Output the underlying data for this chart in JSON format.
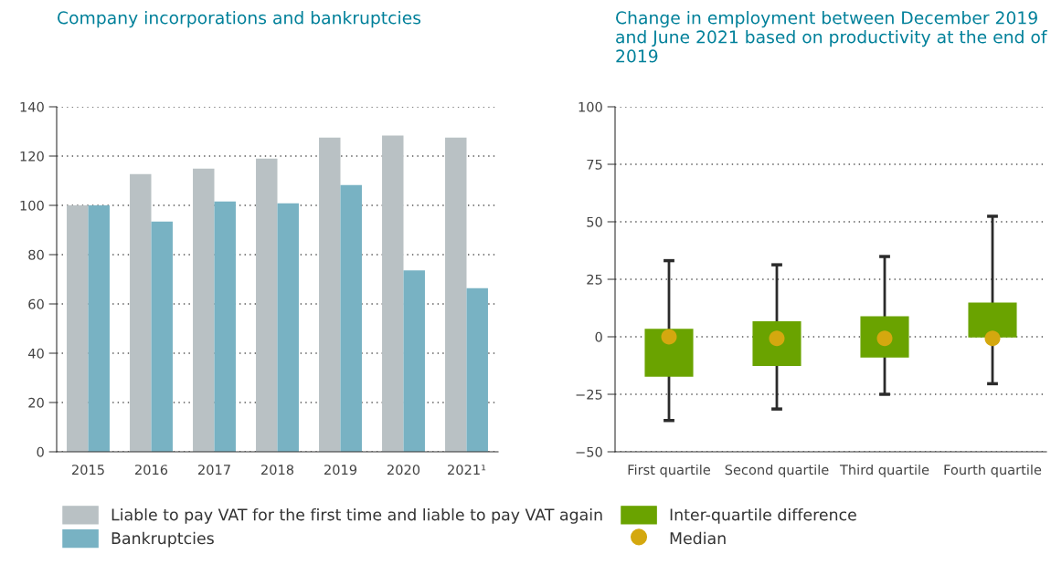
{
  "chart_data": [
    {
      "type": "bar",
      "title": "Company incorporations and bankruptcies",
      "categories": [
        "2015",
        "2016",
        "2017",
        "2018",
        "2019",
        "2020",
        "2021¹"
      ],
      "series": [
        {
          "name": "Liable to pay VAT for the first time and liable to pay VAT again",
          "color": "#b9c1c4",
          "values": [
            100,
            112.7,
            114.9,
            119.0,
            127.5,
            128.3,
            127.5
          ]
        },
        {
          "name": "Bankruptcies",
          "color": "#78b2c3",
          "values": [
            100,
            93.4,
            101.6,
            100.8,
            108.2,
            73.6,
            66.4
          ]
        }
      ],
      "ylim": [
        0,
        140
      ],
      "yticks": [
        0,
        20,
        40,
        60,
        80,
        100,
        120,
        140
      ],
      "grid": "y",
      "legend": "bottom"
    },
    {
      "type": "box",
      "title": "Change in employment between December 2019 and June 2021 based on productivity at the end of 2019",
      "categories": [
        "First quartile",
        "Second quartile",
        "Third quartile",
        "Fourth quartile"
      ],
      "series": [
        {
          "name": "Inter-quartile difference",
          "type": "box",
          "color": "#6aa300",
          "boxes": [
            {
              "low": -36.4,
              "q1": -17.4,
              "q3": 3.5,
              "high": 33.1
            },
            {
              "low": -31.4,
              "q1": -12.7,
              "q3": 6.7,
              "high": 31.3
            },
            {
              "low": -25.0,
              "q1": -9.0,
              "q3": 8.9,
              "high": 34.9
            },
            {
              "low": -20.4,
              "q1": -0.3,
              "q3": 14.9,
              "high": 52.4
            }
          ]
        },
        {
          "name": "Median",
          "type": "scatter",
          "color": "#d4a80f",
          "x": [
            "First quartile",
            "Second quartile",
            "Third quartile",
            "Fourth quartile"
          ],
          "values": [
            0,
            -0.7,
            -0.7,
            -0.7
          ]
        }
      ],
      "ylim": [
        -50,
        100
      ],
      "yticks": [
        {
          "value": -50,
          "label": "−50"
        },
        {
          "value": -25,
          "label": "−25"
        },
        0,
        25,
        50,
        75,
        100
      ],
      "grid": "y",
      "legend": "bottom",
      "marker": "circle"
    }
  ]
}
